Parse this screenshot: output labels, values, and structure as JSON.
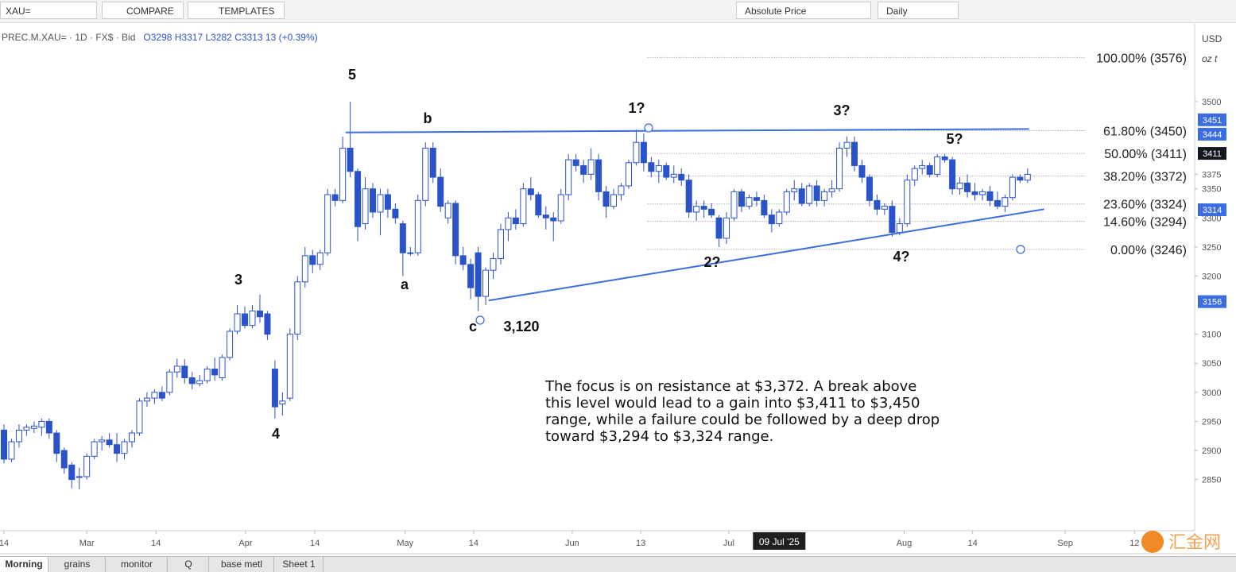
{
  "toolbar": {
    "symbol": "XAU=",
    "compare": "COMPARE",
    "templates": "TEMPLATES",
    "price_mode": "Absolute Price",
    "interval": "Daily"
  },
  "legend": {
    "instrument": "PREC.M.XAU= · 1D · FX$ · Bid",
    "open": "O3298",
    "high": "H3317",
    "low": "L3282",
    "close": "C3313",
    "change": "13 (+0.39%)"
  },
  "axis_units": {
    "currency": "USD",
    "unit": "oz t"
  },
  "tabs": [
    "Morning",
    "grains",
    "monitor",
    "Q",
    "base metl",
    "Sheet 1"
  ],
  "watermark": "汇金网",
  "chart_data": {
    "type": "candlestick",
    "xlim": [
      -0.53,
      158.2
    ],
    "ylim": [
      2762,
      3627
    ],
    "xticks": [
      {
        "value": 0,
        "label": "14"
      },
      {
        "value": 11,
        "label": "Mar"
      },
      {
        "value": 20.2,
        "label": "14"
      },
      {
        "value": 32.1,
        "label": "Apr"
      },
      {
        "value": 41.3,
        "label": "14"
      },
      {
        "value": 53.3,
        "label": "May"
      },
      {
        "value": 62.4,
        "label": "14"
      },
      {
        "value": 75.5,
        "label": "Jun"
      },
      {
        "value": 84.6,
        "label": "13"
      },
      {
        "value": 96.3,
        "label": "Jul"
      },
      {
        "value": 119.6,
        "label": "Aug"
      },
      {
        "value": 128.7,
        "label": "14"
      },
      {
        "value": 141,
        "label": "Sep"
      },
      {
        "value": 150.2,
        "label": "12"
      }
    ],
    "yticks": [
      2850,
      2900,
      2950,
      3000,
      3050,
      3100,
      3200,
      3250,
      3300,
      3350,
      3375,
      3500
    ],
    "grid": false,
    "up_color": "#ffffff",
    "down_color": "#2a52c9",
    "crosshair": {
      "x": 103,
      "label": "09 Jul '25"
    },
    "open": [
      2935,
      2885,
      2915,
      2935,
      2938,
      2940,
      2950,
      2930,
      2900,
      2875,
      2855,
      2855,
      2890,
      2915,
      2918,
      2910,
      2895,
      2915,
      2930,
      2985,
      2990,
      3000,
      3000,
      3035,
      3045,
      3025,
      3015,
      3020,
      3040,
      3025,
      3060,
      3105,
      3135,
      3115,
      3140,
      3135,
      3040,
      2980,
      2990,
      3100,
      3190,
      3235,
      3220,
      3240,
      3340,
      3330,
      3420,
      3380,
      3290,
      3350,
      3310,
      3340,
      3315,
      3290,
      3240,
      3240,
      3330,
      3420,
      3370,
      3300,
      3325,
      3235,
      3220,
      3240,
      3165,
      3210,
      3230,
      3280,
      3300,
      3290,
      3350,
      3340,
      3305,
      3300,
      3295,
      3340,
      3400,
      3390,
      3375,
      3400,
      3345,
      3320,
      3340,
      3355,
      3395,
      3430,
      3395,
      3380,
      3390,
      3370,
      3375,
      3365,
      3310,
      3320,
      3315,
      3300,
      3265,
      3300,
      3345,
      3320,
      3335,
      3330,
      3305,
      3290,
      3310,
      3345,
      3350,
      3325,
      3355,
      3330,
      3345,
      3350,
      3420,
      3430,
      3390,
      3370,
      3330,
      3315,
      3320,
      3275,
      3290,
      3365,
      3385,
      3390,
      3375,
      3405,
      3400,
      3350,
      3360,
      3345,
      3340,
      3345,
      3330,
      3320,
      3335,
      3370,
      3365
    ],
    "high": [
      2945,
      2920,
      2945,
      2945,
      2950,
      2955,
      2955,
      2935,
      2905,
      2880,
      2870,
      2895,
      2920,
      2925,
      2930,
      2930,
      2920,
      2935,
      2990,
      3000,
      3005,
      3010,
      3040,
      3058,
      3057,
      3035,
      3030,
      3045,
      3060,
      3065,
      3110,
      3150,
      3148,
      3150,
      3168,
      3140,
      3055,
      3000,
      3110,
      3200,
      3250,
      3245,
      3245,
      3350,
      3350,
      3440,
      3500,
      3385,
      3370,
      3360,
      3350,
      3350,
      3325,
      3295,
      3250,
      3340,
      3430,
      3430,
      3385,
      3330,
      3330,
      3250,
      3230,
      3250,
      3215,
      3240,
      3290,
      3310,
      3315,
      3360,
      3370,
      3345,
      3320,
      3310,
      3350,
      3410,
      3410,
      3400,
      3420,
      3410,
      3355,
      3350,
      3360,
      3400,
      3452,
      3445,
      3405,
      3400,
      3395,
      3390,
      3385,
      3375,
      3330,
      3330,
      3325,
      3305,
      3310,
      3350,
      3350,
      3340,
      3345,
      3340,
      3315,
      3315,
      3350,
      3365,
      3360,
      3360,
      3365,
      3350,
      3365,
      3430,
      3440,
      3440,
      3400,
      3375,
      3340,
      3325,
      3330,
      3300,
      3375,
      3390,
      3400,
      3395,
      3410,
      3410,
      3405,
      3370,
      3375,
      3360,
      3350,
      3355,
      3345,
      3340,
      3375,
      3375,
      3385
    ],
    "low": [
      2878,
      2880,
      2905,
      2925,
      2930,
      2925,
      2920,
      2880,
      2860,
      2835,
      2833,
      2850,
      2885,
      2900,
      2905,
      2880,
      2885,
      2905,
      2925,
      2975,
      2980,
      2985,
      2995,
      3025,
      3015,
      3005,
      3010,
      3015,
      3020,
      3020,
      3055,
      3100,
      3110,
      3110,
      3120,
      3090,
      2955,
      2960,
      2985,
      3090,
      3180,
      3205,
      3210,
      3235,
      3320,
      3325,
      3370,
      3260,
      3280,
      3300,
      3270,
      3300,
      3290,
      3200,
      3235,
      3235,
      3320,
      3360,
      3310,
      3290,
      3220,
      3210,
      3160,
      3140,
      3150,
      3195,
      3220,
      3260,
      3280,
      3285,
      3330,
      3300,
      3280,
      3260,
      3290,
      3330,
      3380,
      3360,
      3365,
      3330,
      3300,
      3315,
      3330,
      3350,
      3390,
      3380,
      3370,
      3360,
      3365,
      3360,
      3355,
      3300,
      3295,
      3300,
      3300,
      3250,
      3255,
      3295,
      3310,
      3315,
      3320,
      3300,
      3275,
      3285,
      3305,
      3330,
      3320,
      3320,
      3320,
      3320,
      3335,
      3345,
      3405,
      3380,
      3360,
      3320,
      3305,
      3305,
      3268,
      3270,
      3285,
      3355,
      3375,
      3370,
      3370,
      3395,
      3340,
      3340,
      3335,
      3330,
      3330,
      3320,
      3315,
      3310,
      3330,
      3360,
      3360
    ],
    "close": [
      2885,
      2915,
      2935,
      2940,
      2942,
      2950,
      2930,
      2895,
      2870,
      2850,
      2855,
      2890,
      2915,
      2918,
      2910,
      2895,
      2915,
      2930,
      2985,
      2990,
      3000,
      2990,
      3035,
      3045,
      3025,
      3015,
      3020,
      3040,
      3030,
      3060,
      3105,
      3135,
      3115,
      3140,
      3130,
      3100,
      2975,
      2985,
      3100,
      3190,
      3235,
      3220,
      3240,
      3340,
      3330,
      3420,
      3380,
      3285,
      3350,
      3310,
      3340,
      3315,
      3300,
      3240,
      3240,
      3330,
      3420,
      3370,
      3320,
      3325,
      3235,
      3220,
      3180,
      3165,
      3210,
      3230,
      3280,
      3300,
      3290,
      3350,
      3340,
      3305,
      3300,
      3295,
      3340,
      3400,
      3390,
      3375,
      3400,
      3345,
      3320,
      3340,
      3355,
      3395,
      3430,
      3395,
      3380,
      3390,
      3370,
      3375,
      3365,
      3310,
      3320,
      3315,
      3305,
      3265,
      3300,
      3345,
      3320,
      3335,
      3330,
      3305,
      3290,
      3310,
      3345,
      3350,
      3325,
      3355,
      3330,
      3345,
      3350,
      3420,
      3430,
      3390,
      3370,
      3330,
      3315,
      3320,
      3275,
      3290,
      3365,
      3385,
      3390,
      3375,
      3405,
      3400,
      3350,
      3360,
      3345,
      3340,
      3345,
      3330,
      3320,
      3335,
      3370,
      3365,
      3375
    ],
    "price_labels": [
      {
        "value": 3451,
        "color": "#3b6de0"
      },
      {
        "value": 3444,
        "color": "#3b6de0"
      },
      {
        "value": 3411,
        "color": "#131722"
      },
      {
        "value": 3314,
        "color": "#3b6de0"
      },
      {
        "value": 3156,
        "color": "#3b6de0"
      }
    ],
    "fib_x": [
      85.5,
      143.6
    ],
    "fib_levels": [
      {
        "label": "100.00% (3576)",
        "value": 3576
      },
      {
        "label": "61.80% (3450)",
        "value": 3450
      },
      {
        "label": "50.00% (3411)",
        "value": 3411
      },
      {
        "label": "38.20% (3372)",
        "value": 3372
      },
      {
        "label": "23.60% (3324)",
        "value": 3324
      },
      {
        "label": "14.60% (3294)",
        "value": 3294
      },
      {
        "label": "0.00% (3246)",
        "value": 3246
      }
    ],
    "trendlines": [
      {
        "x": [
          45.4,
          136.2
        ],
        "y": [
          3447,
          3453
        ],
        "color": "#3b6de0"
      },
      {
        "x": [
          64.4,
          138.2
        ],
        "y": [
          3158,
          3315
        ],
        "color": "#3b6de0"
      }
    ],
    "annotations": [
      "5",
      "b",
      "a",
      "c",
      "3,120",
      "3",
      "4",
      "1?",
      "2?",
      "3?",
      "4?",
      "5?"
    ],
    "comment": [
      "The focus is on resistance at $3,372. A break above",
      "this level would lead to a gain into $3,411 to $3,450",
      "range, while a failure could be followed by a deep drop",
      "toward $3,294 to $3,324 range."
    ]
  }
}
